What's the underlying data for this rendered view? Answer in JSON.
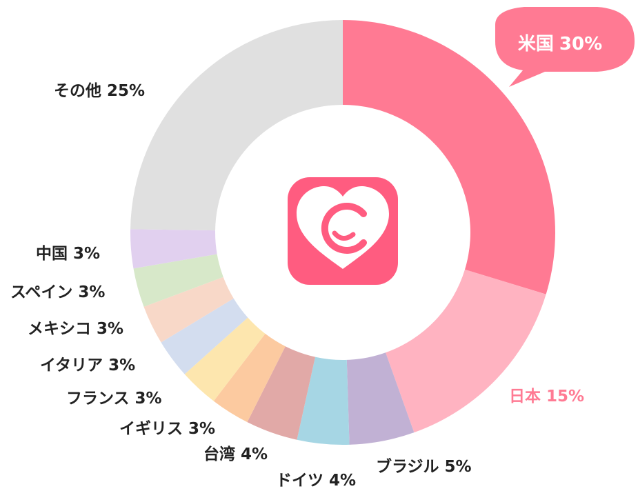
{
  "chart_data": {
    "type": "donut",
    "categories": [
      "米国",
      "日本",
      "ブラジル",
      "ドイツ",
      "台湾",
      "イギリス",
      "フランス",
      "イタリア",
      "メキシコ",
      "スペイン",
      "中国",
      "その他"
    ],
    "values": [
      30,
      15,
      5,
      4,
      4,
      3,
      3,
      3,
      3,
      3,
      3,
      25
    ],
    "value_labels": [
      "30%",
      "15%",
      "5%",
      "4%",
      "4%",
      "3%",
      "3%",
      "3%",
      "3%",
      "3%",
      "3%",
      "25%"
    ],
    "colors": [
      "#ff7a93",
      "#ffb3c1",
      "#c1b1d4",
      "#a6d6e4",
      "#e1a9a7",
      "#fccaa0",
      "#fde6ae",
      "#d3ddef",
      "#f8d8c8",
      "#d7e8c9",
      "#e1d0ef",
      "#e0e0e0"
    ]
  }
}
